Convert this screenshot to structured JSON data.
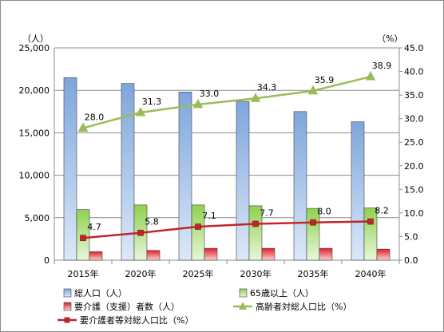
{
  "chart_data": {
    "type": "bar",
    "categories": [
      "2015年",
      "2020年",
      "2025年",
      "2030年",
      "2035年",
      "2040年"
    ],
    "y_left_unit": "（人）",
    "y_right_unit": "（%）",
    "ylim_left": [
      0,
      25000
    ],
    "ylim_right": [
      0,
      45
    ],
    "y_left_ticks": [
      "0",
      "5,000",
      "10,000",
      "15,000",
      "20,000",
      "25,000"
    ],
    "y_right_ticks": [
      "0.0",
      "5.0",
      "10.0",
      "15.0",
      "20.0",
      "25.0",
      "30.0",
      "35.0",
      "40.0",
      "45.0"
    ],
    "series": [
      {
        "name": "総人口（人）",
        "kind": "bar",
        "axis": "left",
        "color": "#7ea6dc",
        "values": [
          21500,
          20800,
          19800,
          18700,
          17500,
          16300
        ]
      },
      {
        "name": "65歳以上（人）",
        "kind": "bar",
        "axis": "left",
        "color": "#8fd14f",
        "values": [
          5950,
          6500,
          6500,
          6400,
          6100,
          6150
        ]
      },
      {
        "name": "要介護（支援）者数（人）",
        "kind": "bar",
        "axis": "left",
        "color": "#e0202a",
        "values": [
          1000,
          1150,
          1400,
          1400,
          1400,
          1300
        ]
      },
      {
        "name": "高齢者対総人口比（%）",
        "kind": "line",
        "axis": "right",
        "color": "#9bbb59",
        "marker": "triangle",
        "values": [
          28.0,
          31.3,
          33.0,
          34.3,
          35.9,
          38.9
        ],
        "labels": [
          "28.0",
          "31.3",
          "33.0",
          "34.3",
          "35.9",
          "38.9"
        ]
      },
      {
        "name": "要介護者等対総人口比（%）",
        "kind": "line",
        "axis": "right",
        "color": "#c0252b",
        "marker": "square",
        "values": [
          4.7,
          5.8,
          7.1,
          7.7,
          8.0,
          8.2
        ],
        "labels": [
          "4.7",
          "5.8",
          "7.1",
          "7.7",
          "8.0",
          "8.2"
        ]
      }
    ],
    "grid": true,
    "legend_position": "bottom"
  }
}
